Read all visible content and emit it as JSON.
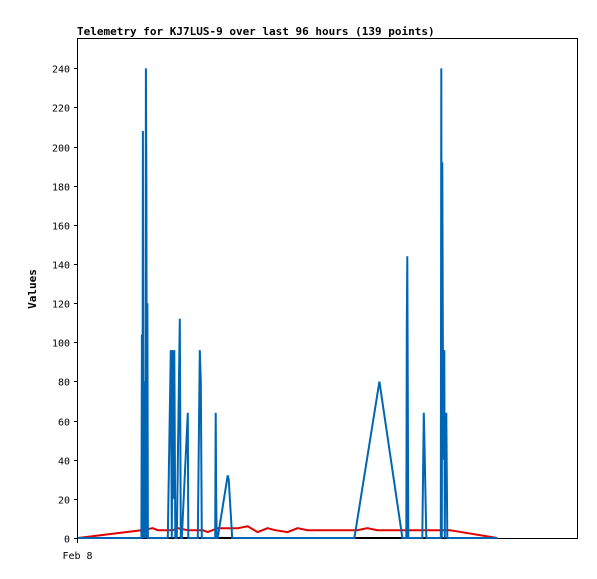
{
  "chart_data": {
    "type": "line",
    "title": "Telemetry for KJ7LUS-9 over last 96 hours (139 points)",
    "xlabel": "",
    "ylabel": "Values",
    "x_ticks": [
      {
        "label": "Feb 8",
        "x": 0
      }
    ],
    "x_range": [
      0,
      1
    ],
    "ylim": [
      0,
      255
    ],
    "y_ticks": [
      0,
      20,
      40,
      60,
      80,
      100,
      120,
      140,
      160,
      180,
      200,
      220,
      240
    ],
    "grid": false,
    "legend": "none",
    "series": [
      {
        "color": "#0066b3",
        "x": [
          0.0,
          0.127,
          0.128,
          0.129,
          0.13,
          0.131,
          0.132,
          0.133,
          0.134,
          0.135,
          0.136,
          0.137,
          0.138,
          0.139,
          0.14,
          0.18,
          0.186,
          0.188,
          0.19,
          0.192,
          0.193,
          0.195,
          0.198,
          0.204,
          0.206,
          0.208,
          0.22,
          0.221,
          0.223,
          0.225,
          0.24,
          0.244,
          0.246,
          0.248,
          0.25,
          0.275,
          0.276,
          0.277,
          0.278,
          0.28,
          0.3,
          0.302,
          0.309,
          0.45,
          0.554,
          0.604,
          0.65,
          0.658,
          0.659,
          0.66,
          0.662,
          0.69,
          0.693,
          0.695,
          0.698,
          0.715,
          0.727,
          0.728,
          0.729,
          0.73,
          0.731,
          0.732,
          0.734,
          0.735,
          0.736,
          0.738,
          0.74,
          0.742,
          0.743,
          0.744,
          0.745,
          0.84
        ],
        "y": [
          0,
          0,
          104,
          0,
          208,
          0,
          80,
          20,
          60,
          0,
          240,
          180,
          0,
          120,
          0,
          0,
          96,
          0,
          96,
          20,
          96,
          0,
          0,
          112,
          0,
          0,
          64,
          0,
          0,
          0,
          0,
          96,
          80,
          0,
          0,
          0,
          64,
          20,
          0,
          0,
          32,
          30,
          0,
          0,
          0,
          80,
          0,
          0,
          108,
          144,
          0,
          0,
          64,
          40,
          0,
          0,
          0,
          240,
          0,
          192,
          108,
          40,
          96,
          0,
          54,
          64,
          0,
          0,
          0,
          0,
          0,
          0
        ]
      },
      {
        "color": "#e00000",
        "x": [
          0.0,
          0.127,
          0.15,
          0.16,
          0.19,
          0.2,
          0.22,
          0.23,
          0.25,
          0.26,
          0.28,
          0.3,
          0.32,
          0.34,
          0.36,
          0.38,
          0.395,
          0.42,
          0.44,
          0.46,
          0.48,
          0.5,
          0.52,
          0.54,
          0.56,
          0.58,
          0.6,
          0.62,
          0.64,
          0.66,
          0.68,
          0.7,
          0.72,
          0.74,
          0.745,
          0.84
        ],
        "y": [
          0,
          4,
          5,
          4,
          4,
          5,
          4,
          4,
          4,
          3,
          5,
          5,
          5,
          6,
          3,
          5,
          4,
          3,
          5,
          4,
          4,
          4,
          4,
          4,
          4,
          5,
          4,
          4,
          4,
          4,
          4,
          4,
          4,
          4,
          4,
          0
        ]
      },
      {
        "color": "#000000",
        "x": [
          0.0,
          0.127,
          0.745
        ],
        "y": [
          0,
          0,
          0
        ]
      }
    ]
  }
}
